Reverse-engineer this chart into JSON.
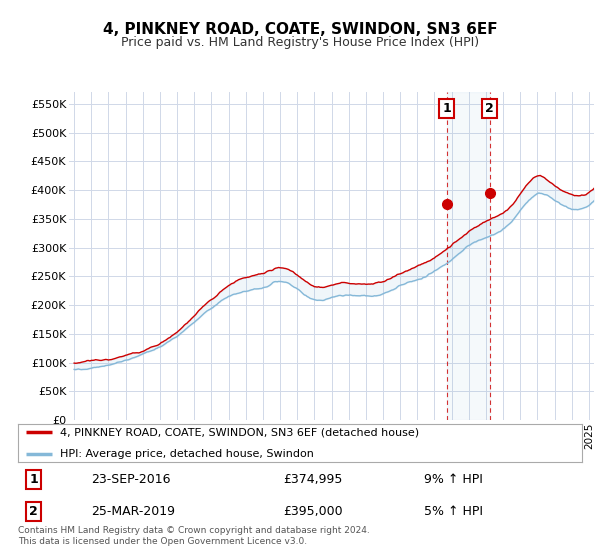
{
  "title": "4, PINKNEY ROAD, COATE, SWINDON, SN3 6EF",
  "subtitle": "Price paid vs. HM Land Registry's House Price Index (HPI)",
  "hpi_color": "#85b8d8",
  "property_color": "#cc0000",
  "marker_color": "#cc0000",
  "bg_color": "#ffffff",
  "plot_bg": "#ffffff",
  "grid_color": "#d0d8e8",
  "transaction1_year": 2016.73,
  "transaction1_value": 374995,
  "transaction1_date": "23-SEP-2016",
  "transaction1_hpi": "9% ↑ HPI",
  "transaction2_year": 2019.23,
  "transaction2_value": 395000,
  "transaction2_date": "25-MAR-2019",
  "transaction2_hpi": "5% ↑ HPI",
  "ylim": [
    0,
    570000
  ],
  "yticks": [
    0,
    50000,
    100000,
    150000,
    200000,
    250000,
    300000,
    350000,
    400000,
    450000,
    500000,
    550000
  ],
  "ytick_labels": [
    "£0",
    "£50K",
    "£100K",
    "£150K",
    "£200K",
    "£250K",
    "£300K",
    "£350K",
    "£400K",
    "£450K",
    "£500K",
    "£550K"
  ],
  "xlim_min": 1994.7,
  "xlim_max": 2025.3,
  "footnote": "Contains HM Land Registry data © Crown copyright and database right 2024.\nThis data is licensed under the Open Government Licence v3.0.",
  "legend1_text": "4, PINKNEY ROAD, COATE, SWINDON, SN3 6EF (detached house)",
  "legend2_text": "HPI: Average price, detached house, Swindon"
}
